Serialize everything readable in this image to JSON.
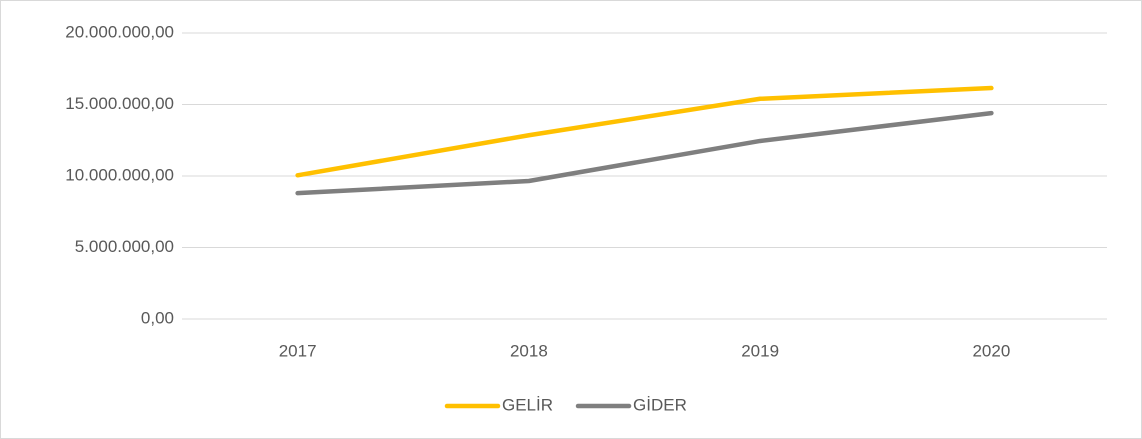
{
  "chart_data": {
    "type": "line",
    "categories": [
      "2017",
      "2018",
      "2019",
      "2020"
    ],
    "series": [
      {
        "name": "GELİR",
        "color": "#ffc000",
        "values": [
          10050000,
          12850000,
          15400000,
          16150000
        ]
      },
      {
        "name": "GİDER",
        "color": "#7f7f7f",
        "values": [
          8800000,
          9650000,
          12450000,
          14400000
        ]
      }
    ],
    "ylim": [
      0,
      20000000
    ],
    "yticks": [
      {
        "value": 0,
        "label": "0,00"
      },
      {
        "value": 5000000,
        "label": "5.000.000,00"
      },
      {
        "value": 10000000,
        "label": "10.000.000,00"
      },
      {
        "value": 15000000,
        "label": "15.000.000,00"
      },
      {
        "value": 20000000,
        "label": "20.000.000,00"
      }
    ],
    "grid": true,
    "legend": "bottom"
  }
}
